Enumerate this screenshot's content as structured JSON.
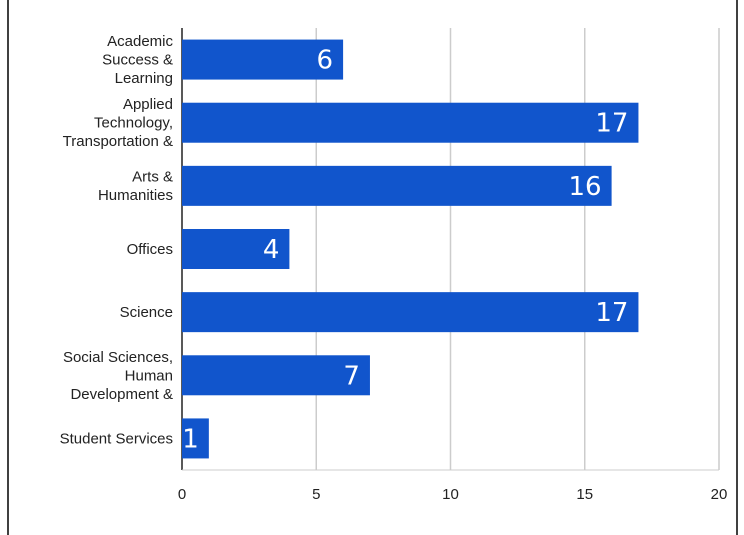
{
  "chart_data": {
    "type": "bar",
    "orientation": "horizontal",
    "title": "",
    "xlabel": "",
    "ylabel": "",
    "categories": [
      [
        "Academic",
        "Success &",
        "Learning"
      ],
      [
        "Applied",
        "Technology,",
        "Transportation &"
      ],
      [
        "Arts &",
        "Humanities"
      ],
      [
        "Offices"
      ],
      [
        "Science"
      ],
      [
        "Social Sciences,",
        "Human",
        "Development &"
      ],
      [
        "Student Services"
      ]
    ],
    "values": [
      6,
      17,
      16,
      4,
      17,
      7,
      1
    ],
    "data_labels": [
      "6",
      "17",
      "16",
      "4",
      "17",
      "7",
      "1"
    ],
    "xlim": [
      0,
      20
    ],
    "xticks": [
      "0",
      "5",
      "10",
      "15",
      "20"
    ],
    "grid": true,
    "legend": "none",
    "colors": {
      "bar": "#1155cc",
      "grid": "#cccccc",
      "axis": "#222222",
      "frame": "#000000"
    }
  }
}
